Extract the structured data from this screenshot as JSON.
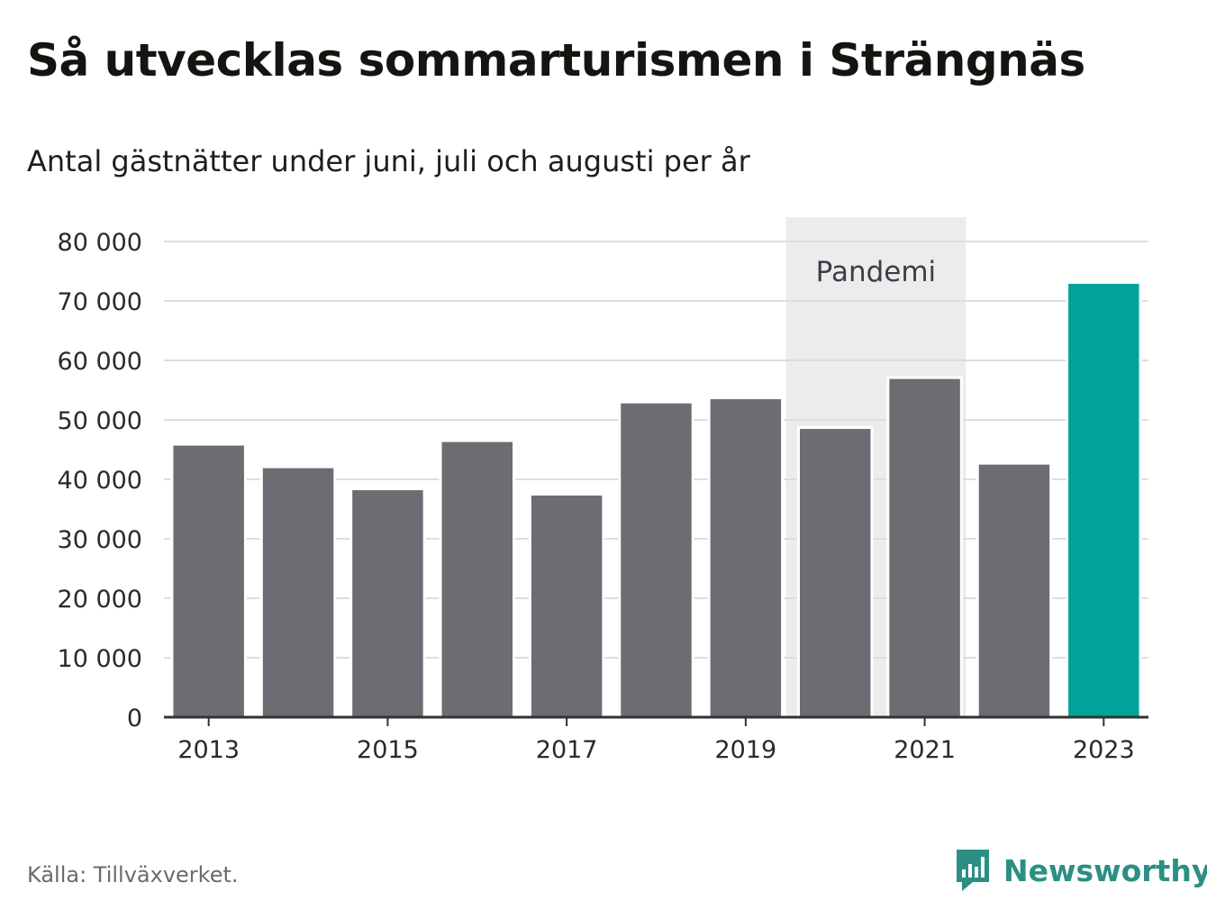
{
  "title": "Så utvecklas sommarturismen i Strängnäs",
  "subtitle": "Antal gästnätter under juni, juli och augusti per år",
  "source": "Källa: Tillväxverket.",
  "brand": {
    "name": "Newsworthy",
    "icon": "newsworthy-logo-icon",
    "color": "#2b8f84"
  },
  "colors": {
    "bar": "#6d6c73",
    "highlight": "#00a39a",
    "band": "#ececec",
    "grid": "#dddddd"
  },
  "chart_data": {
    "type": "bar",
    "categories": [
      "2013",
      "2014",
      "2015",
      "2016",
      "2017",
      "2018",
      "2019",
      "2020",
      "2021",
      "2022",
      "2023"
    ],
    "values": [
      45900,
      42100,
      38400,
      46500,
      37500,
      53000,
      53700,
      48700,
      57100,
      42700,
      73100
    ],
    "highlight_category": "2023",
    "x_tick_labels": [
      "2013",
      "2015",
      "2017",
      "2019",
      "2021",
      "2023"
    ],
    "y_ticks": [
      0,
      10000,
      20000,
      30000,
      40000,
      50000,
      60000,
      70000,
      80000
    ],
    "y_tick_labels": [
      "0",
      "10 000",
      "20 000",
      "30 000",
      "40 000",
      "50 000",
      "60 000",
      "70 000",
      "80 000"
    ],
    "ylim": [
      0,
      80000
    ],
    "grid": true,
    "annotation": {
      "label": "Pandemi",
      "from": "2020",
      "to": "2021"
    }
  }
}
